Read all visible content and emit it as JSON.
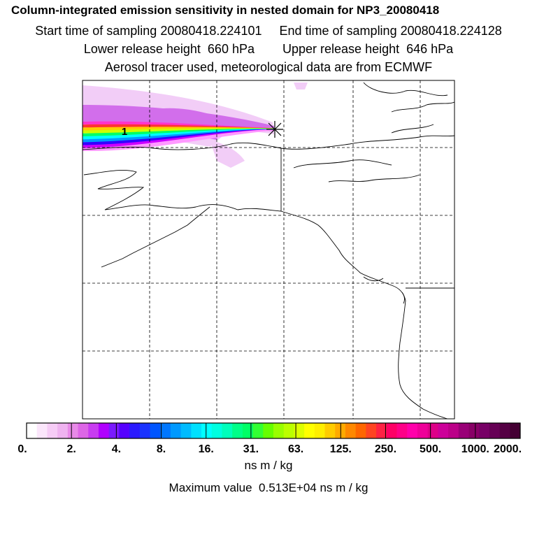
{
  "title": "Column-integrated emission sensitivity in nested domain for NP3_20080418",
  "sampling": {
    "start": "Start time of sampling 20080418.224101",
    "end": "End time of sampling 20080418.224128"
  },
  "release": {
    "lower": "Lower release height  660 hPa",
    "upper": "Upper release height  646 hPa"
  },
  "tracer_note": "Aerosol tracer used, meteorological data are from ECMWF",
  "map": {
    "label_1": "1",
    "release_marker": "asterisk-icon",
    "plume_colors": [
      "#ff33cc",
      "#ff3333",
      "#ffcc00",
      "#ccff00",
      "#00ff66",
      "#00ffff",
      "#0099ff",
      "#3300ff",
      "#cc00ff",
      "#ff99ff"
    ]
  },
  "colorbar": {
    "ticks": [
      "0.",
      "2.",
      "4.",
      "8.",
      "16.",
      "31.",
      "63.",
      "125.",
      "250.",
      "500.",
      "1000.",
      "2000."
    ],
    "colors": [
      "#ffffff",
      "#fbe6fb",
      "#f6ccf6",
      "#efb3f0",
      "#e88ae8",
      "#dd66e6",
      "#c83cf0",
      "#b000ff",
      "#7a1aff",
      "#5500ff",
      "#2a1aff",
      "#1a33ff",
      "#0055ff",
      "#0077ff",
      "#0099ff",
      "#00bbff",
      "#00e0ff",
      "#00ffff",
      "#00ffe0",
      "#00ffbb",
      "#00ff88",
      "#00ff66",
      "#33ff33",
      "#66ff00",
      "#99ff00",
      "#bbff00",
      "#ddff00",
      "#ffff00",
      "#ffee00",
      "#ffcc00",
      "#ffaa00",
      "#ff8800",
      "#ff6600",
      "#ff4422",
      "#ff2244",
      "#ff0066",
      "#ff0088",
      "#ff00aa",
      "#ee0099",
      "#dd0088",
      "#cc0099",
      "#bb0088",
      "#990077",
      "#880066",
      "#770066",
      "#660055",
      "#550044",
      "#440033"
    ],
    "units": "ns m / kg",
    "maximum": "Maximum value  0.513E+04 ns m / kg"
  }
}
